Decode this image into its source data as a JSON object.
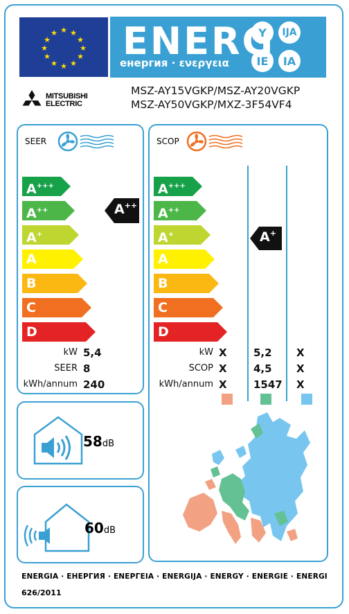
{
  "header": {
    "energ_word": "ENERG",
    "energ_sub": "енергия · ενεργεια",
    "lang_badges": [
      "Y",
      "IJA",
      "IE",
      "IA"
    ]
  },
  "brand": {
    "line1": "MITSUBISHI",
    "line2": "ELECTRIC"
  },
  "models": {
    "line1": "MSZ-AY15VGKP/MSZ-AY20VGKP",
    "line2": "MSZ-AY50VGKP/MXZ-3F54VF4"
  },
  "scale_classes": [
    {
      "label": "A",
      "sup": "+++",
      "color": "#17a24a"
    },
    {
      "label": "A",
      "sup": "++",
      "color": "#4cb748"
    },
    {
      "label": "A",
      "sup": "+",
      "color": "#bfd630"
    },
    {
      "label": "A",
      "sup": "",
      "color": "#fff100"
    },
    {
      "label": "B",
      "sup": "",
      "color": "#fbb813"
    },
    {
      "label": "C",
      "sup": "",
      "color": "#f06f21"
    },
    {
      "label": "D",
      "sup": "",
      "color": "#e42424"
    }
  ],
  "cooling": {
    "title": "SEER",
    "indicator": {
      "label": "A",
      "sup": "++"
    },
    "rows": [
      {
        "label": "kW",
        "value": "5,4"
      },
      {
        "label": "SEER",
        "value": "8"
      },
      {
        "label": "kWh/annum",
        "value": "240"
      }
    ]
  },
  "heating": {
    "title": "SCOP",
    "indicator": {
      "label": "A",
      "sup": "+"
    },
    "rows": [
      {
        "label": "kW",
        "values": [
          "X",
          "5,2",
          "X"
        ]
      },
      {
        "label": "SCOP",
        "values": [
          "X",
          "4,5",
          "X"
        ]
      },
      {
        "label": "kWh/annum",
        "values": [
          "X",
          "1547",
          "X"
        ]
      }
    ],
    "zone_colors": [
      "#f2a283",
      "#63c194",
      "#78c6ef"
    ]
  },
  "noise": {
    "indoor": {
      "value": "58",
      "unit": "dB"
    },
    "outdoor": {
      "value": "60",
      "unit": "dB"
    }
  },
  "footer": {
    "languages": "ENERGIA · ЕНЕРГИЯ · ΕΝΕΡΓΕΙΑ · ENERGIJA · ENERGY · ENERGIE · ENERGI",
    "regulation": "626/2011"
  }
}
